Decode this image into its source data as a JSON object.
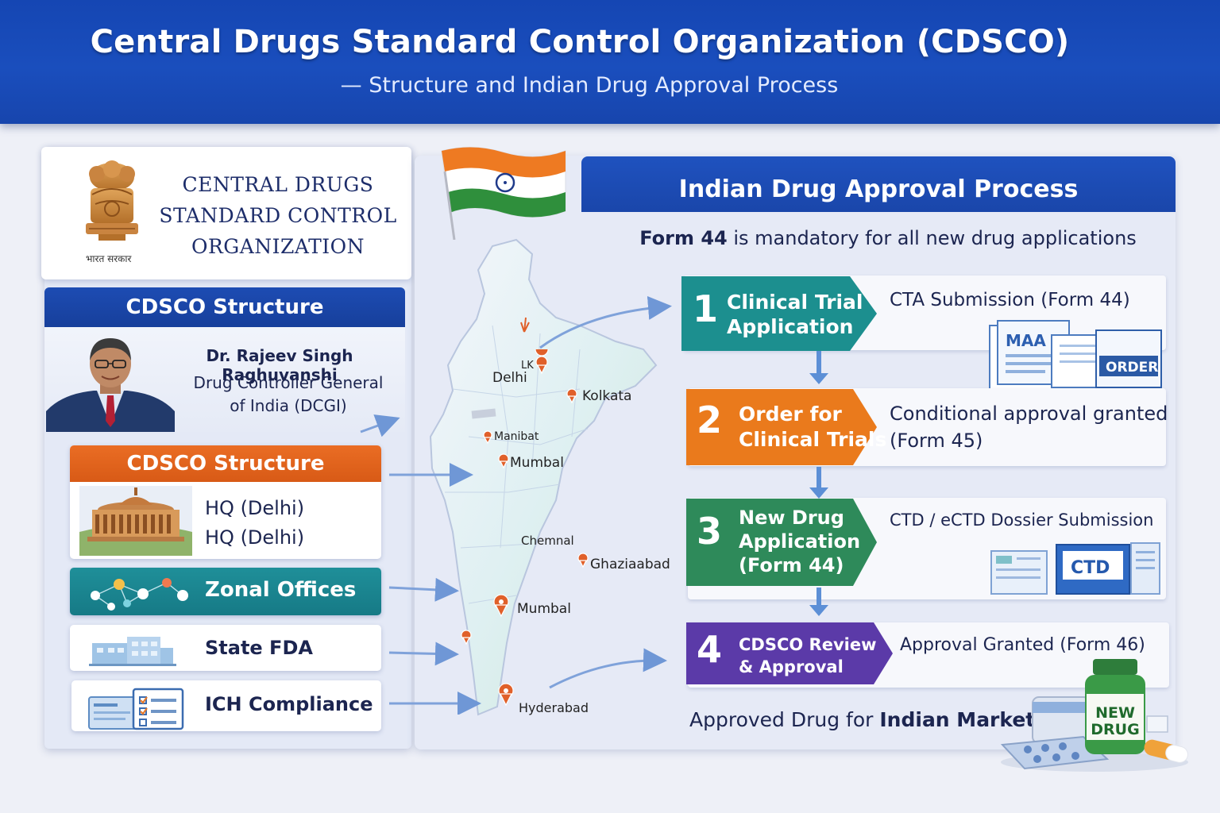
{
  "header": {
    "title": "Central Drugs Standard Control Organization (CDSCO)",
    "subtitle": "— Structure and Indian Drug Approval Process"
  },
  "org": {
    "name_line1": "CENTRAL DRUGS",
    "name_line2": "STANDARD CONTROL",
    "name_line3": "ORGANIZATION",
    "emblem_caption": "भारत सरकार",
    "emblem_icon": "national-emblem-icon"
  },
  "structure": {
    "heading": "CDSCO Structure",
    "person_name": "Dr. Rajeev Singh Raghuvanshi",
    "person_role_line1": "Drug Controller General",
    "person_role_line2": "of India (DCGI)",
    "sub_heading": "CDSCO Structure",
    "hq_line1": "HQ (Delhi)",
    "hq_line2": "HQ (Delhi)",
    "zonal_label": "Zonal Offices",
    "state_label": "State FDA",
    "ich_label": "ICH Compliance"
  },
  "map": {
    "labels": [
      "Delhi",
      "Kolkata",
      "Manibat",
      "Mumbal",
      "Chemnal",
      "Ghaziaabad",
      "Mumbal",
      "Hyderabad"
    ],
    "marker_label": "LK"
  },
  "approval": {
    "heading": "Indian Drug Approval Process",
    "note_bold": "Form 44",
    "note_rest": " is mandatory for all new drug applications",
    "steps": [
      {
        "num": "1",
        "label_line1": "Clinical Trial",
        "label_line2": "Application",
        "label_line3": "",
        "desc_line1": "CTA Submission (Form 44)",
        "desc_line2": "",
        "color": "#1c8f8f"
      },
      {
        "num": "2",
        "label_line1": "Order for",
        "label_line2": "Clinical Trials",
        "label_line3": "",
        "desc_line1": "Conditional approval granted",
        "desc_line2": "(Form 45)",
        "color": "#ea7a1c"
      },
      {
        "num": "3",
        "label_line1": "New Drug",
        "label_line2": "Application",
        "label_line3": "(Form 44)",
        "desc_line1": "CTD / eCTD Dossier Submission",
        "desc_line2": "",
        "color": "#2e8a5a"
      },
      {
        "num": "4",
        "label_line1": "CDSCO Review",
        "label_line2": "& Approval",
        "label_line3": "",
        "desc_line1": "Approval Granted (Form 46)",
        "desc_line2": "",
        "color": "#5b3aa8"
      }
    ],
    "doc_labels": {
      "maa": "MAA",
      "order": "ORDER",
      "ctd": "CTD"
    },
    "final_normal": "Approved Drug for ",
    "final_bold": "Indian Market",
    "bottle_line1": "NEW",
    "bottle_line2": "DRUG"
  }
}
